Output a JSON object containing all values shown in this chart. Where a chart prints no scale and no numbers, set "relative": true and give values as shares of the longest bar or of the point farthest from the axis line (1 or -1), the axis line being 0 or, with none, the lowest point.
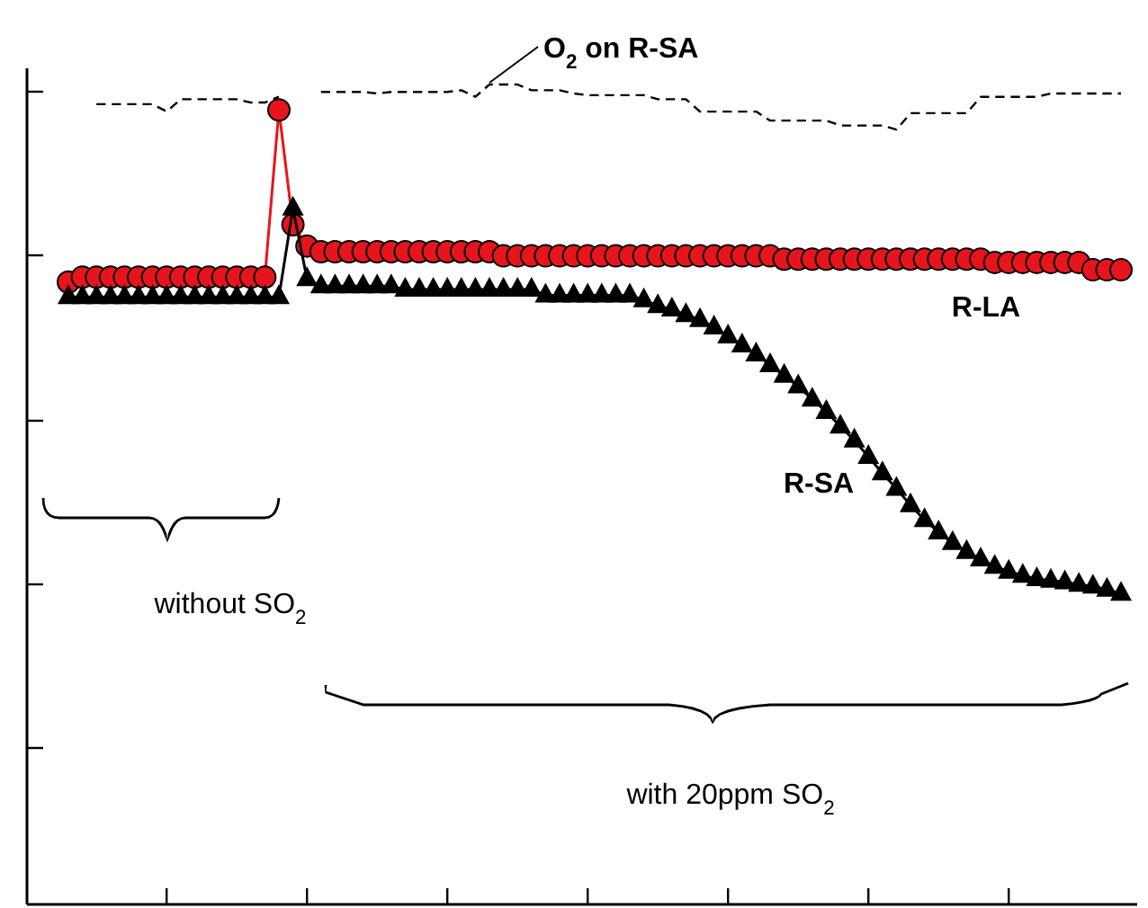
{
  "chart_data": {
    "type": "line",
    "relative": true,
    "categories": [
      null,
      null,
      null,
      null,
      null,
      null,
      null,
      null,
      null,
      null,
      null,
      null,
      null,
      null,
      null,
      null,
      null,
      null,
      null,
      null,
      null,
      null,
      null,
      null,
      null,
      null,
      null,
      null,
      null,
      null,
      null,
      null,
      null,
      null,
      null,
      null,
      null,
      null,
      null,
      null,
      null,
      null,
      null,
      null,
      null,
      null,
      null,
      null,
      null,
      null,
      null,
      null,
      null,
      null,
      null,
      null,
      null,
      null,
      null,
      null,
      null,
      null,
      null,
      null,
      null,
      null,
      null,
      null,
      null,
      null,
      null,
      null,
      null,
      null,
      null,
      null
    ],
    "series": [
      {
        "name": "O$_{2}$ on R-SA",
        "color": "#000000",
        "marker": "none",
        "line_style": "dashed",
        "values": [
          null,
          null,
          0.976,
          0.976,
          0.976,
          0.976,
          0.976,
          0.967,
          0.982,
          0.982,
          0.982,
          0.982,
          0.982,
          0.978,
          0.978,
          0.985,
          null,
          null,
          0.991,
          0.991,
          0.991,
          0.991,
          0.989,
          0.991,
          0.991,
          0.991,
          0.991,
          0.991,
          0.993,
          0.985,
          1,
          1,
          1,
          0.993,
          0.993,
          0.993,
          0.989,
          0.987,
          0.987,
          0.987,
          0.987,
          0.987,
          0.982,
          0.982,
          0.982,
          0.967,
          0.967,
          0.967,
          0.967,
          0.967,
          0.956,
          0.956,
          0.956,
          0.956,
          0.956,
          0.95,
          0.95,
          0.95,
          0.95,
          0.945,
          0.965,
          0.965,
          0.965,
          0.965,
          0.965,
          0.985,
          0.985,
          0.985,
          0.985,
          0.985,
          0.989,
          0.989,
          0.989,
          0.989,
          0.989,
          0.989
        ]
      },
      {
        "name": "R-LA",
        "color": "#e8141c",
        "marker": "circle",
        "line_style": "solid",
        "values": [
          0.759,
          0.765,
          0.765,
          0.765,
          0.765,
          0.765,
          0.765,
          0.765,
          0.765,
          0.765,
          0.765,
          0.765,
          0.765,
          0.765,
          0.765,
          0.969,
          0.829,
          0.803,
          0.796,
          0.796,
          0.796,
          0.796,
          0.796,
          0.796,
          0.796,
          0.796,
          0.796,
          0.796,
          0.796,
          0.796,
          0.796,
          0.791,
          0.791,
          0.791,
          0.791,
          0.791,
          0.791,
          0.791,
          0.791,
          0.791,
          0.791,
          0.791,
          0.791,
          0.791,
          0.791,
          0.791,
          0.791,
          0.791,
          0.791,
          0.791,
          0.791,
          0.787,
          0.787,
          0.787,
          0.787,
          0.787,
          0.787,
          0.787,
          0.787,
          0.787,
          0.787,
          0.787,
          0.787,
          0.787,
          0.787,
          0.787,
          0.783,
          0.783,
          0.783,
          0.783,
          0.783,
          0.783,
          0.783,
          0.774,
          0.774,
          0.774
        ]
      },
      {
        "name": "R-SA",
        "color": "#000000",
        "marker": "triangle",
        "line_style": "solid",
        "values": [
          0.741,
          0.741,
          0.741,
          0.741,
          0.741,
          0.741,
          0.741,
          0.741,
          0.741,
          0.741,
          0.741,
          0.741,
          0.741,
          0.741,
          0.741,
          0.741,
          0.849,
          0.763,
          0.754,
          0.754,
          0.754,
          0.754,
          0.754,
          0.754,
          0.75,
          0.75,
          0.75,
          0.75,
          0.75,
          0.75,
          0.75,
          0.75,
          0.75,
          0.75,
          0.743,
          0.743,
          0.743,
          0.743,
          0.743,
          0.743,
          0.743,
          0.737,
          0.73,
          0.726,
          0.719,
          0.713,
          0.704,
          0.693,
          0.682,
          0.671,
          0.658,
          0.645,
          0.632,
          0.616,
          0.601,
          0.583,
          0.566,
          0.546,
          0.526,
          0.507,
          0.487,
          0.469,
          0.454,
          0.441,
          0.43,
          0.421,
          0.412,
          0.406,
          0.401,
          0.397,
          0.395,
          0.393,
          0.39,
          0.388,
          0.384,
          0.379
        ]
      }
    ],
    "annotations": [
      "without SO$_{2}$",
      "with 20ppm SO$_{2}$"
    ],
    "grid": false,
    "legend": "top"
  }
}
